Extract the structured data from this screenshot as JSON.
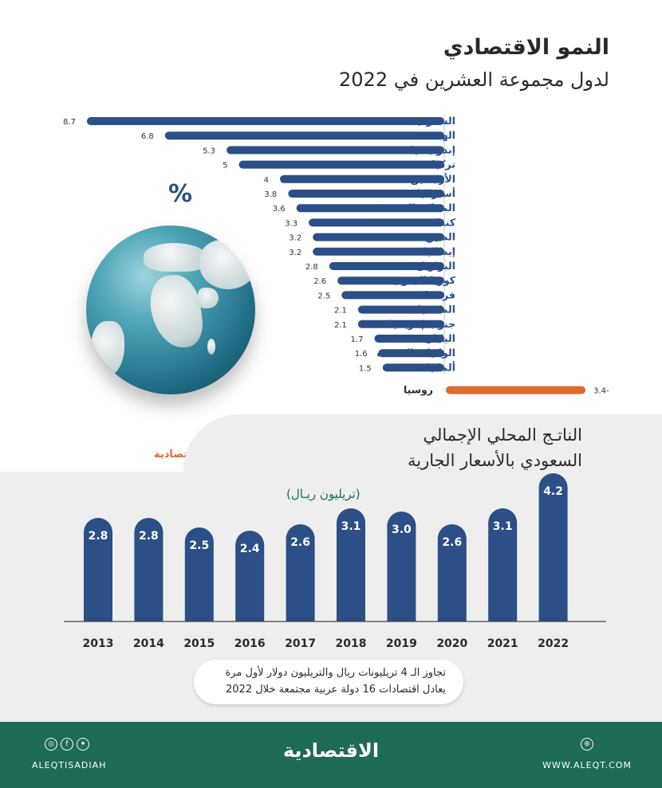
{
  "top_chart": {
    "title_line1": "النمو الاقتصادي",
    "title_line2": "لدول مجموعة العشرين في 2022",
    "percent_symbol": "%",
    "bar_color": "#2b4f86",
    "negative_color": "#e06a2c"
  },
  "brand_small": "الاقتصادية",
  "gdp_chart": {
    "title_line1": "الناتـج المحلي الإجمالي",
    "title_line2": "السعودي بالأسعار الجارية",
    "unit": "(تريليون ريـال)",
    "bar_color": "#2b4f86"
  },
  "note": {
    "line1": "تجاوز الـ 4 تريليونات ريال والتريليون دولار لأول مرة",
    "line2": "يعادل اقتصادات 16 دولة عربية مجتمعة خلال 2022"
  },
  "footer": {
    "logo": "الاقتصادية",
    "left_handle": "ALEQTISADIAH",
    "right_url": "WWW.ALEQT.COM",
    "social_icons": [
      "instagram-icon",
      "facebook-icon",
      "twitter-icon"
    ],
    "web_icon": "website-icon"
  },
  "chart_data": [
    {
      "type": "bar",
      "orientation": "horizontal",
      "title": "النمو الاقتصادي لدول مجموعة العشرين في 2022",
      "unit": "%",
      "categories": [
        "السعودية",
        "الهند",
        "إندونيسيا",
        "تركيا",
        "الأرجنتين",
        "أستراليا",
        "المملكة المتحدة",
        "كندا",
        "الصين",
        "إيطاليا",
        "البرازيل",
        "كوريا الجنوبية",
        "فرنسا",
        "المكسيك",
        "جنوب إفريقيا",
        "اليابان",
        "الولايات المتحدة",
        "ألمانيا",
        "روسيا"
      ],
      "values": [
        8.7,
        6.8,
        5.3,
        5,
        4,
        3.8,
        3.6,
        3.3,
        3.2,
        3.2,
        2.8,
        2.6,
        2.5,
        2.1,
        2.1,
        1.7,
        1.6,
        1.5,
        -3.4
      ],
      "value_labels": [
        "8.7",
        "6.8",
        "5.3",
        "5",
        "4",
        "3.8",
        "3.6",
        "3.3",
        "3.2",
        "3.2",
        "2.8",
        "2.6",
        "2.5",
        "2.1",
        "2.1",
        "1.7",
        "1.6",
        "1.5",
        "3.4-"
      ]
    },
    {
      "type": "bar",
      "title": "الناتج المحلي الإجمالي السعودي بالأسعار الجارية",
      "unit": "تريليون ريال",
      "categories": [
        "2013",
        "2014",
        "2015",
        "2016",
        "2017",
        "2018",
        "2019",
        "2020",
        "2021",
        "2022"
      ],
      "values": [
        2.8,
        2.8,
        2.5,
        2.4,
        2.6,
        3.1,
        3.0,
        2.6,
        3.1,
        4.2
      ],
      "value_labels": [
        "2.8",
        "2.8",
        "2.5",
        "2.4",
        "2.6",
        "3.1",
        "3.0",
        "2.6",
        "3.1",
        "4.2"
      ]
    }
  ]
}
